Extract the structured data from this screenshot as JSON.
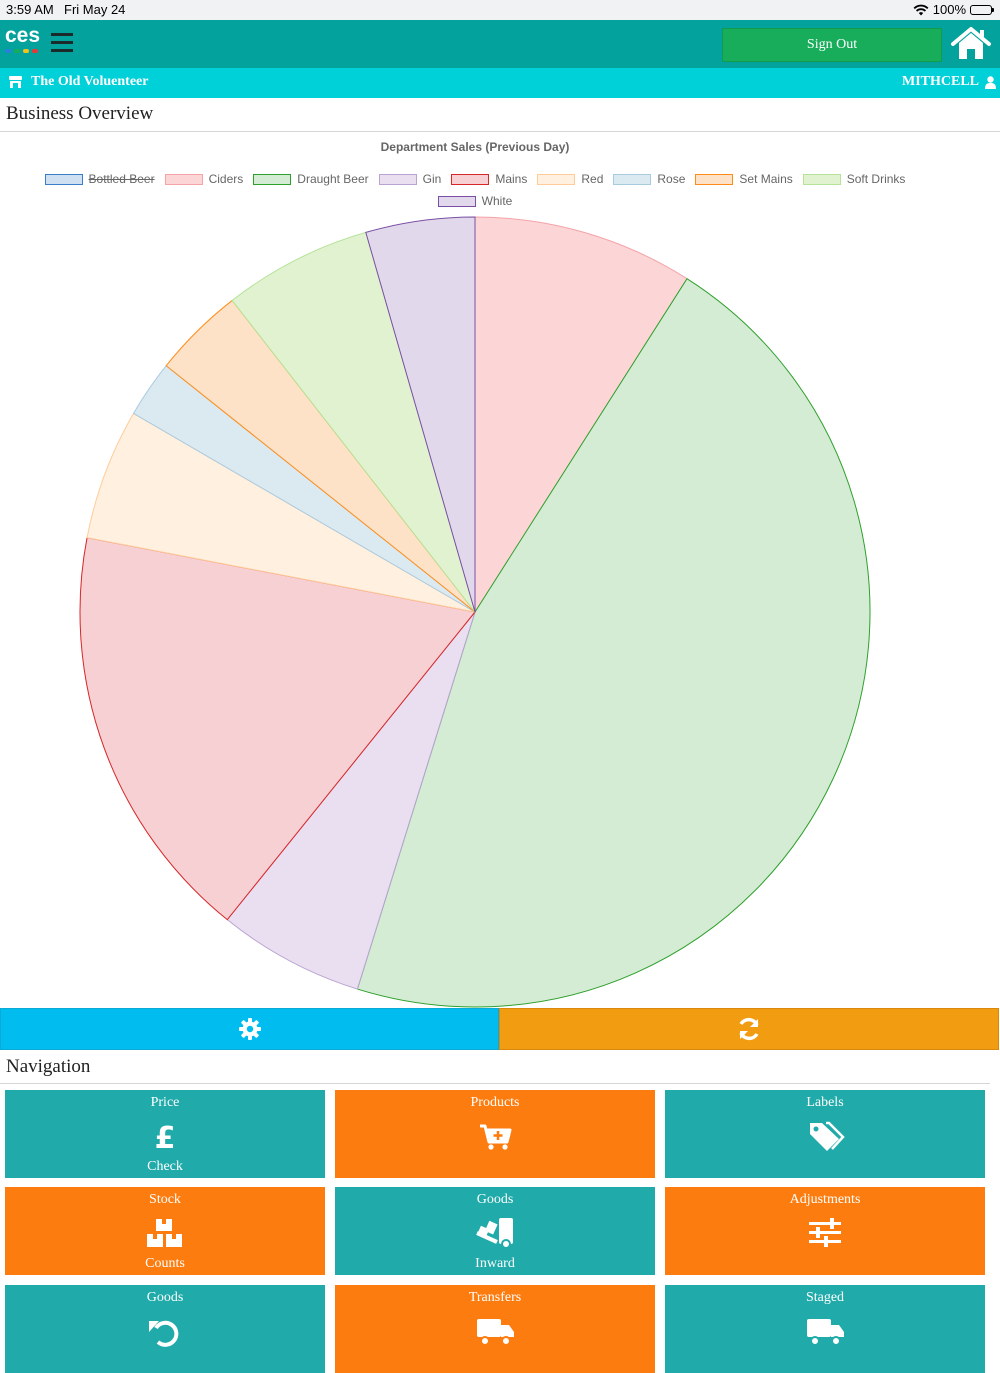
{
  "status": {
    "time": "3:59 AM",
    "date": "Fri May 24",
    "battery": "100%"
  },
  "header": {
    "logo_text": "ces",
    "logo_dot_colors": [
      "#2a7de1",
      "#18ad5a",
      "#f2c21b",
      "#e53935"
    ],
    "signout_label": "Sign Out",
    "brand_color": "#04a29c"
  },
  "location": {
    "store": "The Old Voluenteer",
    "user": "MITHCELL"
  },
  "overview": {
    "title": "Business Overview"
  },
  "chart_data": {
    "type": "pie",
    "title": "Department Sales (Previous Day)",
    "legend_position": "top",
    "labels": [
      "Bottled Beer",
      "Ciders",
      "Draught Beer",
      "Gin",
      "Mains",
      "Red",
      "Rose",
      "Set Mains",
      "Soft Drinks",
      "White"
    ],
    "hidden": [
      true,
      false,
      false,
      false,
      false,
      false,
      false,
      false,
      false,
      false
    ],
    "values": [
      0,
      8.9,
      45.2,
      5.9,
      17.0,
      5.3,
      2.3,
      3.7,
      6.0,
      4.4
    ],
    "colors": {
      "border": [
        "#3a7dc9",
        "#f4a3a8",
        "#2ea02c",
        "#b8a3d2",
        "#d62728",
        "#ffcc99",
        "#a9cbe0",
        "#ff8c1a",
        "#b6e39a",
        "#7a4fa3"
      ],
      "fill": [
        "#cfe0f3",
        "#fcd5d7",
        "#d5ecd4",
        "#eadff0",
        "#f7d0d3",
        "#fff0e0",
        "#dbe9f1",
        "#fde2c8",
        "#e1f2d0",
        "#e2d8ec"
      ]
    }
  },
  "actions": {
    "settings_icon": "gear-icon",
    "refresh_icon": "refresh-icon",
    "settings_color": "#00bcef",
    "refresh_color": "#f29c12"
  },
  "navigation": {
    "title": "Navigation",
    "tiles": [
      {
        "line1": "Price",
        "line2": "Check",
        "icon": "pound-icon"
      },
      {
        "line1": "Products",
        "line2": "",
        "icon": "cart-plus-icon"
      },
      {
        "line1": "Labels",
        "line2": "",
        "icon": "tags-icon"
      },
      {
        "line1": "Stock",
        "line2": "Counts",
        "icon": "boxes-icon"
      },
      {
        "line1": "Goods",
        "line2": "Inward",
        "icon": "dolly-icon"
      },
      {
        "line1": "Adjustments",
        "line2": "",
        "icon": "sliders-icon"
      },
      {
        "line1": "Goods",
        "line2": "",
        "icon": "undo-icon"
      },
      {
        "line1": "Transfers",
        "line2": "",
        "icon": "truck-icon"
      },
      {
        "line1": "Staged",
        "line2": "",
        "icon": "truck-icon"
      }
    ]
  }
}
